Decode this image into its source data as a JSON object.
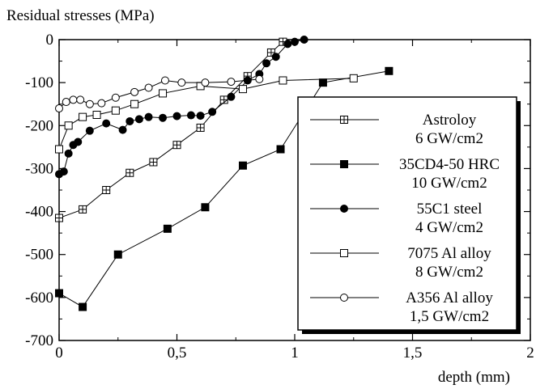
{
  "chart_data": {
    "type": "line",
    "ylabel": "Residual stresses (MPa)",
    "xlabel": "depth (mm)",
    "xlim": [
      0,
      2
    ],
    "ylim": [
      -700,
      0
    ],
    "xticks": [
      0,
      0.5,
      1,
      1.5,
      2
    ],
    "xtick_labels": [
      "0",
      "0,5",
      "1",
      "1,5",
      "2"
    ],
    "yticks": [
      0,
      -100,
      -200,
      -300,
      -400,
      -500,
      -600,
      -700
    ],
    "ytick_labels": [
      "0",
      "-100",
      "-200",
      "-300",
      "-400",
      "-500",
      "-600",
      "-700"
    ],
    "grid": false,
    "legend_position": "right",
    "series": [
      {
        "name": "Astroloy",
        "name_line2": "6 GW/cm2",
        "marker": "crossed-square",
        "x": [
          0,
          0.1,
          0.2,
          0.3,
          0.4,
          0.5,
          0.6,
          0.7,
          0.8,
          0.9,
          0.95
        ],
        "y": [
          -415,
          -395,
          -350,
          -310,
          -285,
          -245,
          -205,
          -140,
          -85,
          -30,
          -5
        ]
      },
      {
        "name": "35CD4-50 HRC",
        "name_line2": "10 GW/cm2",
        "marker": "filled-square",
        "x": [
          0,
          0.1,
          0.25,
          0.46,
          0.62,
          0.78,
          0.94,
          1.12,
          1.4
        ],
        "y": [
          -590,
          -622,
          -500,
          -440,
          -390,
          -293,
          -255,
          -100,
          -73
        ]
      },
      {
        "name": "55C1 steel",
        "name_line2": "4 GW/cm2",
        "marker": "filled-circle",
        "x": [
          0,
          0.02,
          0.04,
          0.06,
          0.08,
          0.13,
          0.2,
          0.27,
          0.3,
          0.34,
          0.38,
          0.44,
          0.5,
          0.56,
          0.6,
          0.65,
          0.73,
          0.8,
          0.85,
          0.88,
          0.92,
          0.97,
          1.0,
          1.04
        ],
        "y": [
          -313,
          -307,
          -265,
          -245,
          -238,
          -212,
          -195,
          -210,
          -190,
          -185,
          -180,
          -182,
          -178,
          -176,
          -177,
          -168,
          -133,
          -95,
          -80,
          -55,
          -40,
          -10,
          -5,
          0
        ]
      },
      {
        "name": "7075 Al alloy",
        "name_line2": "8 GW/cm2",
        "marker": "open-square",
        "x": [
          0,
          0.04,
          0.1,
          0.16,
          0.24,
          0.32,
          0.44,
          0.6,
          0.78,
          0.95,
          1.25
        ],
        "y": [
          -255,
          -200,
          -180,
          -175,
          -165,
          -150,
          -125,
          -108,
          -115,
          -95,
          -90
        ]
      },
      {
        "name": "A356 Al alloy",
        "name_line2": "1,5 GW/cm2",
        "marker": "open-circle",
        "x": [
          0,
          0.03,
          0.06,
          0.09,
          0.13,
          0.18,
          0.24,
          0.32,
          0.38,
          0.45,
          0.52,
          0.62,
          0.73,
          0.85
        ],
        "y": [
          -160,
          -145,
          -140,
          -140,
          -150,
          -148,
          -135,
          -122,
          -112,
          -95,
          -100,
          -100,
          -98,
          -92
        ]
      }
    ]
  }
}
